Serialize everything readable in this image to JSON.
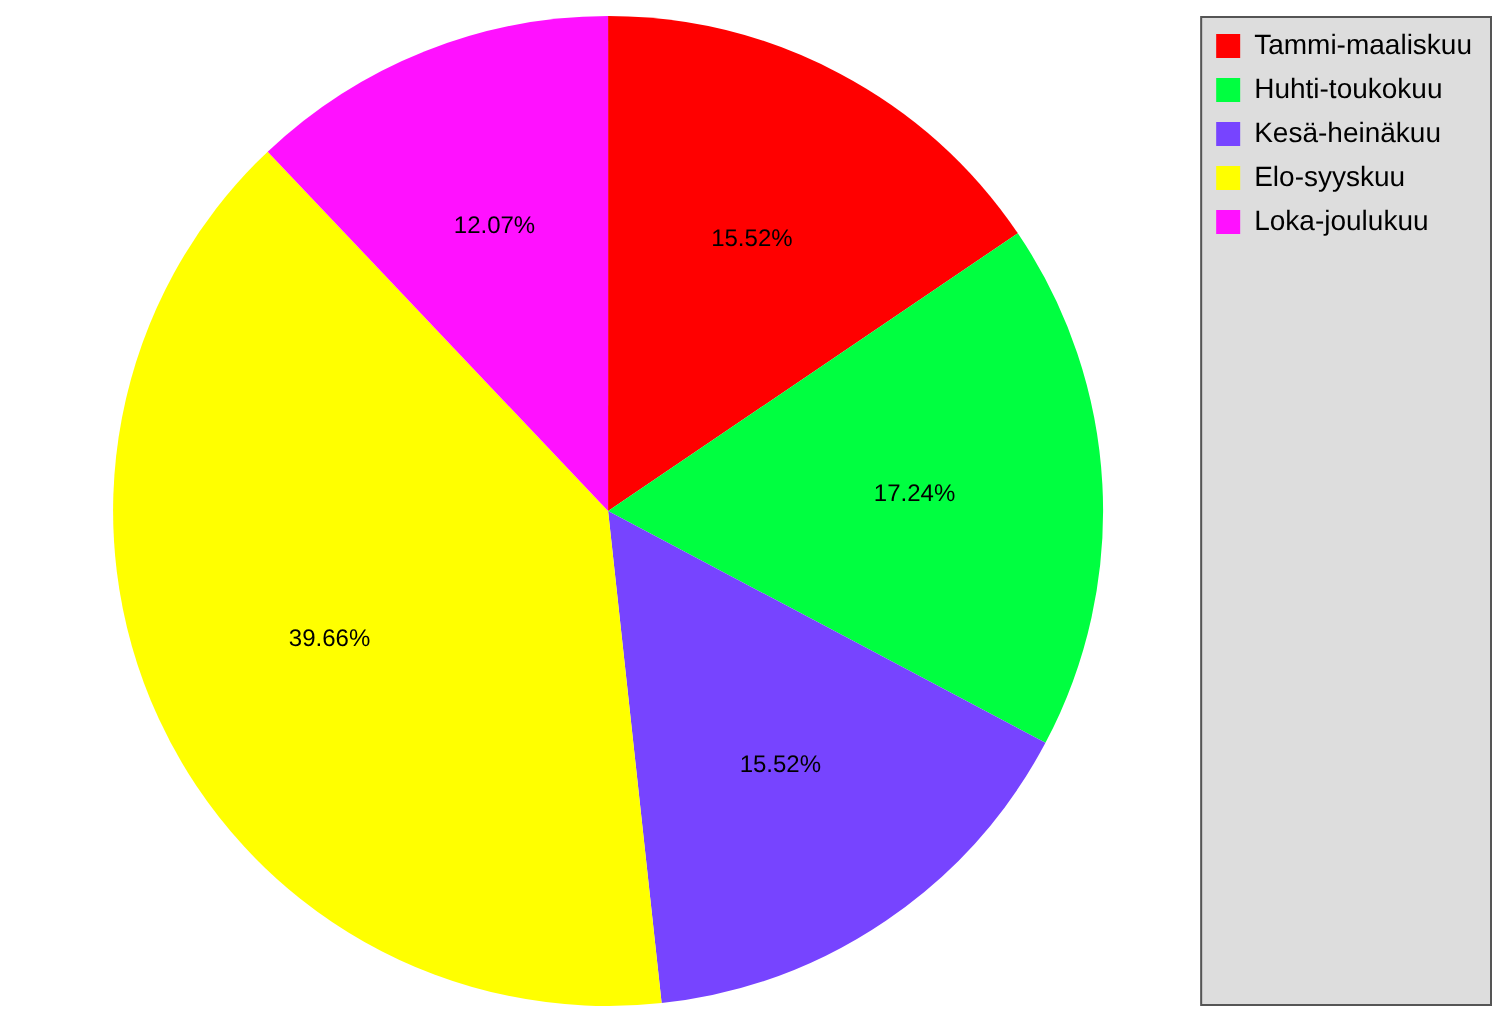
{
  "chart_data": {
    "type": "pie",
    "categories": [
      "Tammi-maaliskuu",
      "Huhti-toukokuu",
      "Kesä-heinäkuu",
      "Elo-syyskuu",
      "Loka-joulukuu"
    ],
    "values": [
      15.52,
      17.24,
      15.52,
      39.66,
      12.07
    ],
    "colors": [
      "#ff0000",
      "#00ff40",
      "#7744ff",
      "#ffff00",
      "#ff11ff"
    ],
    "value_labels": [
      "15.52%",
      "17.24%",
      "15.52%",
      "39.66%",
      "12.07%"
    ],
    "legend": "top right"
  }
}
